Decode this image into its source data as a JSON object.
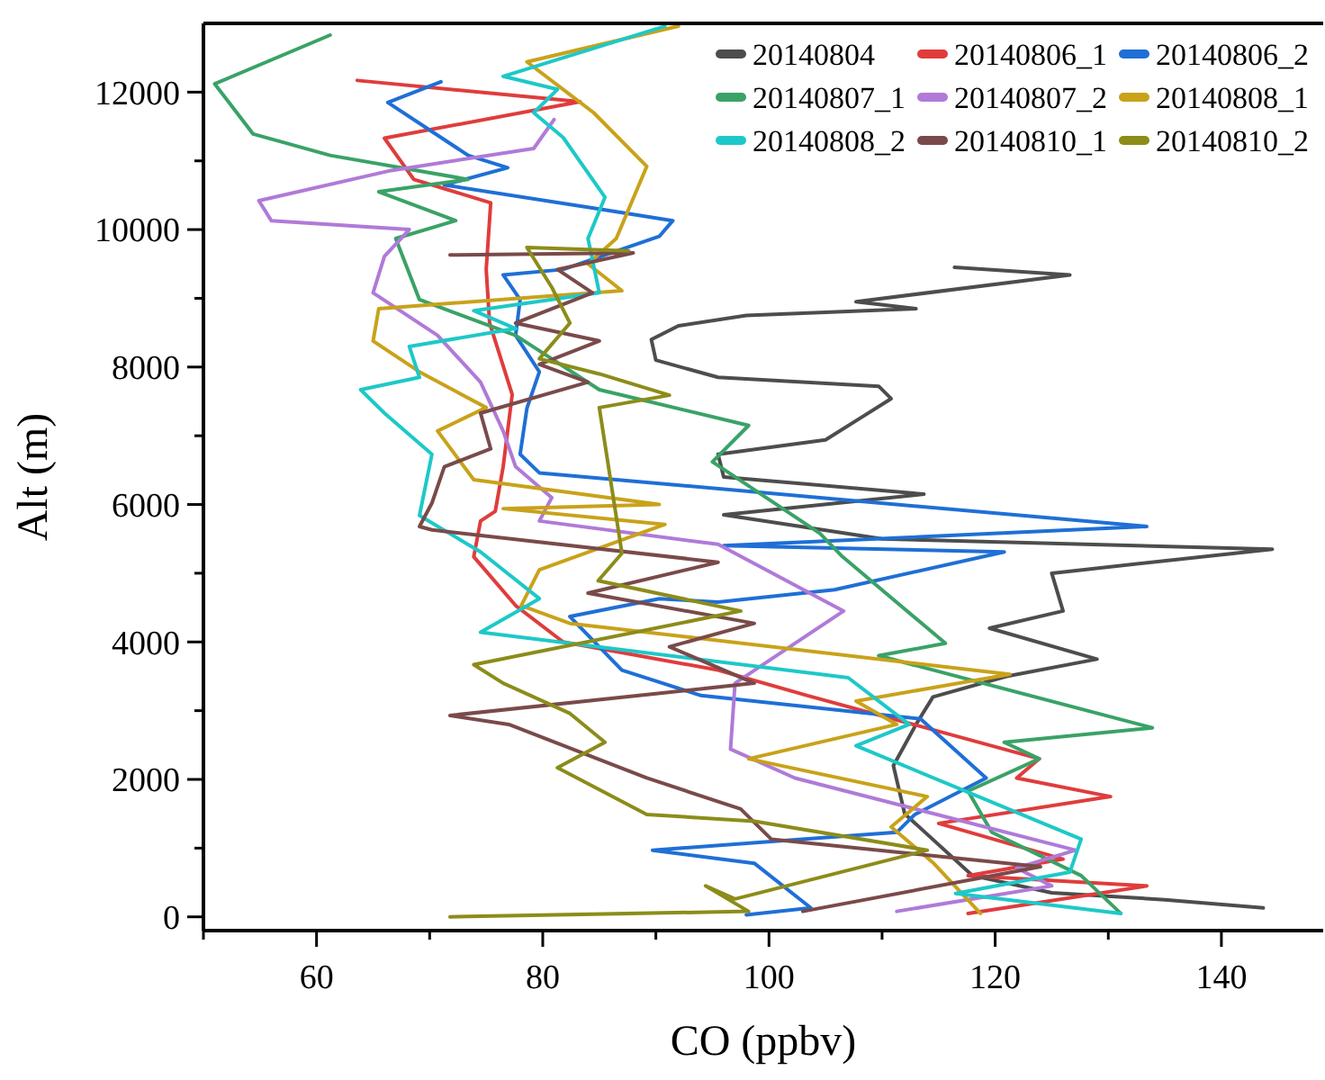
{
  "chart_data": {
    "type": "line",
    "xlabel": "CO (ppbv)",
    "ylabel": "Alt (m)",
    "xlim": [
      50,
      149
    ],
    "ylim": [
      -200,
      13000
    ],
    "xticks": [
      {
        "value": 50,
        "label": null
      },
      60,
      {
        "value": 70,
        "label": null
      },
      80,
      {
        "value": 90,
        "label": null
      },
      100,
      {
        "value": 110,
        "label": null
      },
      120,
      {
        "value": 130,
        "label": null
      },
      140
    ],
    "yticks": [
      0,
      {
        "value": 1000,
        "label": null
      },
      2000,
      {
        "value": 3000,
        "label": null
      },
      4000,
      {
        "value": 5000,
        "label": null
      },
      6000,
      {
        "value": 7000,
        "label": null
      },
      8000,
      {
        "value": 9000,
        "label": null
      },
      10000,
      {
        "value": 11000,
        "label": null
      },
      12000
    ],
    "grid": false,
    "legend": "top right",
    "marker": "none",
    "line_style": "solid",
    "series": [
      {
        "name": "20140804",
        "color": "#4d4d4d",
        "x": [
          143.7,
          135,
          125,
          118,
          112,
          111,
          113,
          114.5,
          121,
          129,
          119.5,
          126,
          125,
          144.5,
          110,
          96,
          113.7,
          96,
          95.5,
          105,
          108,
          110.8,
          109.7,
          95.5,
          90,
          89.6,
          92,
          98,
          113,
          107.7,
          126.6,
          116.4
        ],
        "values": [
          130,
          250,
          350,
          600,
          1500,
          2200,
          2800,
          3200,
          3500,
          3750,
          4200,
          4450,
          5000,
          5350,
          5500,
          5850,
          6150,
          6400,
          6730,
          6940,
          7250,
          7540,
          7720,
          7850,
          8100,
          8400,
          8600,
          8750,
          8850,
          8950,
          9340,
          9450
        ]
      },
      {
        "name": "20140806_1",
        "color": "#e03c3c",
        "x": [
          117.6,
          133.4,
          117.6,
          126,
          115,
          130.2,
          121.9,
          123.9,
          103.4,
          95.5,
          81.8,
          77.6,
          73.9,
          74.5,
          75.8,
          76.5,
          77.3,
          75.3,
          75,
          75.4,
          68.6,
          66,
          83.3,
          63.6
        ],
        "values": [
          50,
          450,
          600,
          840,
          1360,
          1750,
          2020,
          2300,
          3220,
          3590,
          4000,
          4530,
          5240,
          5760,
          5900,
          6550,
          7600,
          8640,
          9420,
          10390,
          10730,
          11330,
          11860,
          12170
        ]
      },
      {
        "name": "20140806_2",
        "color": "#1f6fd6",
        "x": [
          98,
          103.7,
          98.7,
          89.7,
          111.3,
          112.9,
          119.2,
          113.4,
          94,
          87,
          82.4,
          90.3,
          95.5,
          105.8,
          120.8,
          96,
          133.4,
          79.7,
          78,
          78.6,
          79.7,
          77.6,
          78,
          76.5,
          81.8,
          90.3,
          91.5,
          85,
          71.3,
          76.9,
          73.4,
          66.3,
          71
        ],
        "values": [
          30,
          130,
          780,
          970,
          1230,
          1490,
          2020,
          2880,
          3220,
          3590,
          4370,
          4630,
          4580,
          4760,
          5310,
          5400,
          5680,
          6460,
          6730,
          7400,
          7930,
          8460,
          8980,
          9340,
          9420,
          9900,
          10130,
          10300,
          10650,
          10900,
          11080,
          11850,
          12150
        ]
      },
      {
        "name": "20140807_1",
        "color": "#3aa267",
        "x": [
          131.1,
          127.6,
          119.7,
          117.6,
          123.9,
          120.8,
          133.9,
          109.7,
          115.6,
          106.5,
          104.5,
          95,
          98.2,
          85,
          77.6,
          69.1,
          67,
          72.3,
          65.5,
          73.4,
          61.2,
          54.4,
          51,
          61.2
        ],
        "values": [
          50,
          600,
          1230,
          1830,
          2300,
          2540,
          2750,
          3800,
          3980,
          5240,
          5580,
          6620,
          7150,
          7670,
          8460,
          8980,
          9870,
          10130,
          10550,
          10730,
          11080,
          11390,
          12120,
          12830
        ]
      },
      {
        "name": "20140807_2",
        "color": "#b07ad8",
        "x": [
          111.3,
          125,
          121.9,
          127.1,
          102.3,
          96.6,
          97,
          106.6,
          95.5,
          79.7,
          80.8,
          77.6,
          76.5,
          74.5,
          70.7,
          65,
          66,
          68.2,
          56,
          54.9,
          66.6,
          79.2,
          81
        ],
        "values": [
          80,
          450,
          710,
          970,
          2020,
          2440,
          3400,
          4450,
          5420,
          5760,
          6100,
          6550,
          7070,
          7780,
          8460,
          9080,
          9610,
          10000,
          10130,
          10420,
          10860,
          11180,
          11600
        ]
      },
      {
        "name": "20140808_1",
        "color": "#c9a21a",
        "x": [
          118.7,
          114.5,
          110.8,
          114,
          98.2,
          111.3,
          107.7,
          121.3,
          82.4,
          78.1,
          79.7,
          90.8,
          76.5,
          90.3,
          73.9,
          70.7,
          75,
          69.1,
          65,
          65.5,
          87,
          84,
          86.5,
          89.2,
          84.5,
          81.8,
          78.6,
          92
        ],
        "values": [
          50,
          790,
          1310,
          1750,
          2300,
          2800,
          3140,
          3530,
          4270,
          4530,
          5050,
          5710,
          5940,
          6000,
          6360,
          7070,
          7410,
          7930,
          8380,
          8850,
          9110,
          9500,
          9870,
          10920,
          11700,
          12040,
          12440,
          12960
        ]
      },
      {
        "name": "20140808_2",
        "color": "#1ec8c8",
        "x": [
          131.1,
          116.5,
          126.6,
          127.6,
          107.7,
          112.4,
          107,
          74.5,
          79.7,
          74.5,
          69.1,
          70.2,
          66,
          63.9,
          69.1,
          68.2,
          77.6,
          73.9,
          85,
          84,
          85.5,
          81.8,
          79.2,
          81.3,
          76.5,
          90.8
        ],
        "values": [
          50,
          340,
          650,
          1130,
          2490,
          2800,
          3480,
          4140,
          4630,
          5310,
          5840,
          6730,
          7330,
          7670,
          7850,
          8300,
          8560,
          8820,
          9080,
          9870,
          10470,
          11340,
          11700,
          12040,
          12230,
          12960
        ]
      },
      {
        "name": "20140810_1",
        "color": "#7a4a4a",
        "x": [
          103,
          124,
          100.2,
          97.5,
          89.2,
          77,
          71.8,
          98.7,
          91.2,
          98.7,
          84,
          95.5,
          70.2,
          69.1,
          70.2,
          71.3,
          75.4,
          74.5,
          84,
          79.7,
          85,
          77.6,
          84.4,
          81.3,
          88,
          71.8
        ],
        "values": [
          80,
          730,
          1130,
          1570,
          2020,
          2800,
          2930,
          3400,
          3930,
          4270,
          4710,
          5160,
          5630,
          5680,
          6020,
          6550,
          6810,
          7330,
          7780,
          8040,
          8380,
          8640,
          9080,
          9420,
          9660,
          9630
        ]
      },
      {
        "name": "20140810_2",
        "color": "#8c8c1a",
        "x": [
          71.8,
          98.2,
          94.4,
          97,
          114,
          98.7,
          89.2,
          81.3,
          85.5,
          82.4,
          76.5,
          73.9,
          97.5,
          84.9,
          87,
          85,
          91.2,
          85,
          79.7,
          82.4,
          80.8,
          78.6,
          87.6
        ],
        "values": [
          0,
          80,
          450,
          260,
          970,
          1390,
          1490,
          2170,
          2540,
          2960,
          3400,
          3670,
          4450,
          4890,
          5290,
          7410,
          7590,
          7900,
          8120,
          8640,
          9160,
          9740,
          9690
        ]
      }
    ]
  }
}
